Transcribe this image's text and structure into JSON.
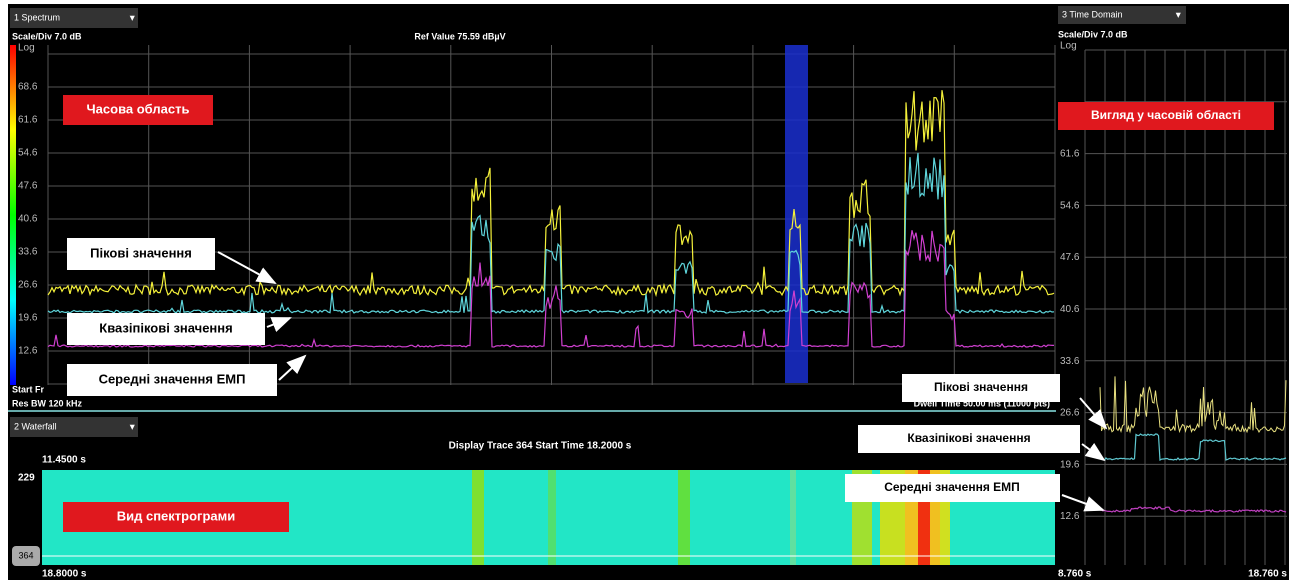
{
  "spectrum": {
    "selector": "1 Spectrum",
    "scale": "Scale/Div 7.0 dB",
    "scale_type": "Log",
    "ref_value": "Ref Value 75.59 dBµV",
    "y_labels": [
      "68.6",
      "61.6",
      "54.6",
      "47.6",
      "40.6",
      "33.6",
      "26.6",
      "19.6",
      "12.6"
    ],
    "start_freq": "Start Fr",
    "res_bw": "Res BW 120 kHz",
    "dwell_time": "Dwell Time 50.00 ms (11000 pts)",
    "callout": "Часова область",
    "annotations": [
      "Пікові значення",
      "Квазіпікові значення",
      "Середні значення ЕМП"
    ]
  },
  "waterfall": {
    "selector": "2 Waterfall",
    "header": "Display Trace 364   Start Time 18.2000 s",
    "top_time": "11.4500 s",
    "top_trace": "229",
    "bottom_trace": "364",
    "bottom_time": "18.8000 s",
    "callout": "Вид спектрограми"
  },
  "time_domain": {
    "selector": "3 Time Domain",
    "scale": "Scale/Div 7.0 dB",
    "scale_type": "Log",
    "y_labels": [
      "61.6",
      "54.6",
      "47.6",
      "40.6",
      "33.6",
      "26.6",
      "19.6",
      "12.6"
    ],
    "callout": "Вигляд у часовій області",
    "annotations": [
      "Пікові значення",
      "Квазіпікові значення",
      "Середні значення ЕМП"
    ],
    "start_time": "8.760 s",
    "end_time": "18.760 s"
  }
}
